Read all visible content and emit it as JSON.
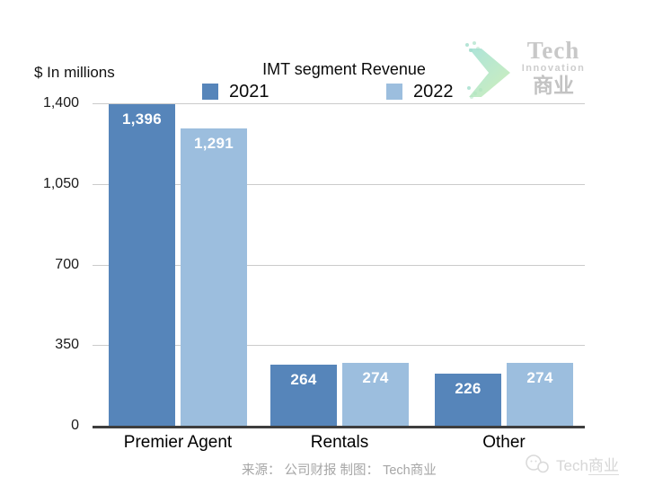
{
  "header": {
    "units_label": "$ In millions",
    "title": "IMT segment Revenue"
  },
  "legend": [
    {
      "label": "2021",
      "color": "#5685ba"
    },
    {
      "label": "2022",
      "color": "#9cbede"
    }
  ],
  "brand": {
    "name": "Tech",
    "subtitle": "Innovation",
    "cn": "商业",
    "arrow_color": "#a9e1c9"
  },
  "footer": {
    "caption": "来源： 公司财报 制图： Tech商业"
  },
  "watermark": {
    "text_en": "Tech",
    "text_cn": "商业"
  },
  "icons": {
    "brand-arrow-icon": "teal chevron arrow with dot clusters",
    "wechat-icon": "light gray chat-bubbles watermark glyph"
  },
  "colors": {
    "bar_2021": "#5685ba",
    "bar_2022": "#9cbede",
    "gridline": "#cbcbcb",
    "axis_baseline": "#3e3e3e",
    "bar_value_text": "#ffffff"
  },
  "chart_data": {
    "type": "bar",
    "title": "IMT segment Revenue",
    "ylabel": "$ In millions",
    "categories": [
      "Premier Agent",
      "Rentals",
      "Other"
    ],
    "series": [
      {
        "name": "2021",
        "color": "#5685ba",
        "values": [
          1396,
          264,
          226
        ]
      },
      {
        "name": "2022",
        "color": "#9cbede",
        "values": [
          1291,
          274,
          274
        ]
      }
    ],
    "value_labels": [
      [
        "1,396",
        "264",
        "226"
      ],
      [
        "1,291",
        "274",
        "274"
      ]
    ],
    "ylim": [
      0,
      1400
    ],
    "yticks": [
      0,
      350,
      700,
      1050,
      1400
    ],
    "ytick_labels": [
      "0",
      "350",
      "700",
      "1,050",
      "1,400"
    ],
    "grid": true,
    "legend_position": "top"
  }
}
